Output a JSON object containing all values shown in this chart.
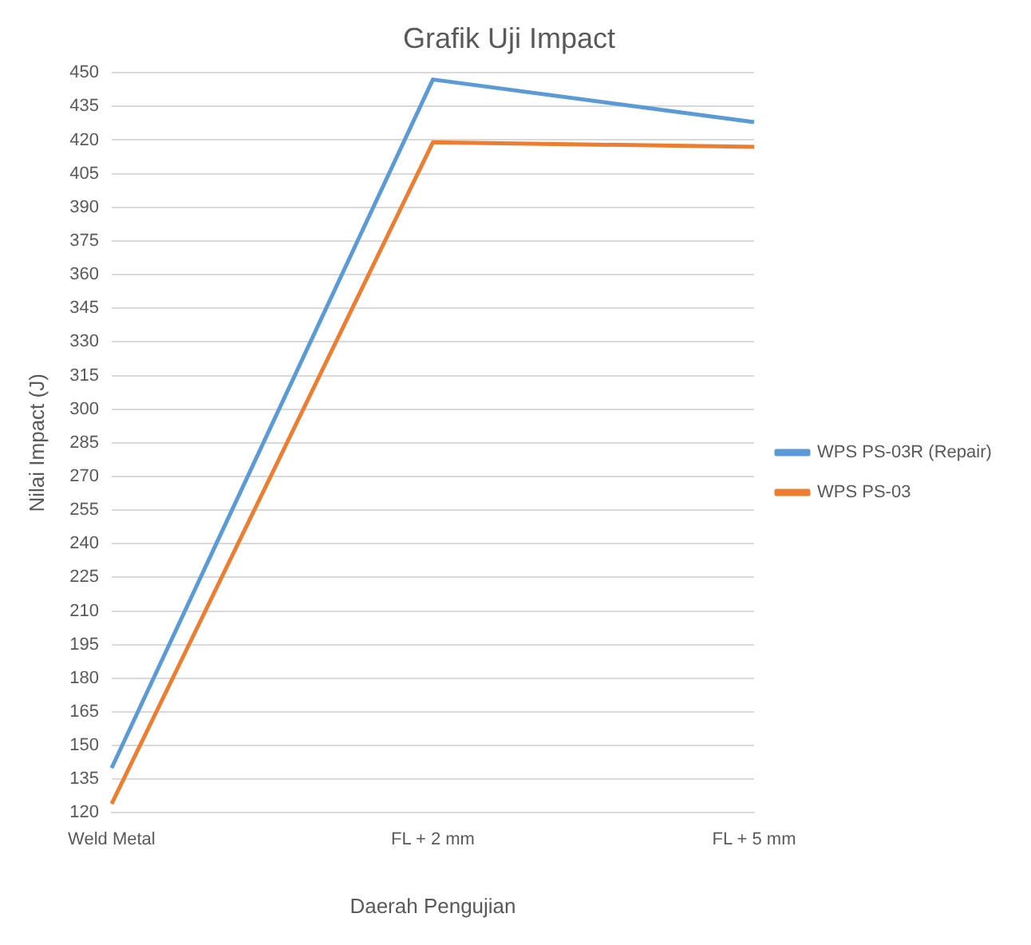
{
  "chart_data": {
    "type": "line",
    "title": "Grafik Uji Impact",
    "xlabel": "Daerah Pengujian",
    "ylabel": "Nilai Impact (J)",
    "categories": [
      "Weld Metal",
      "FL + 2 mm",
      "FL + 5 mm"
    ],
    "series": [
      {
        "name": "WPS PS-03R (Repair)",
        "color": "#5b9bd5",
        "values": [
          140,
          447,
          428
        ]
      },
      {
        "name": "WPS PS-03",
        "color": "#ed7d31",
        "values": [
          124,
          419,
          417
        ]
      }
    ],
    "ylim": [
      120,
      450
    ],
    "yticks": [
      120,
      135,
      150,
      165,
      180,
      195,
      210,
      225,
      240,
      255,
      270,
      285,
      300,
      315,
      330,
      345,
      360,
      375,
      390,
      405,
      420,
      435,
      450
    ],
    "grid": "y",
    "legend": "right",
    "marker": "none",
    "line_style": "solid"
  }
}
